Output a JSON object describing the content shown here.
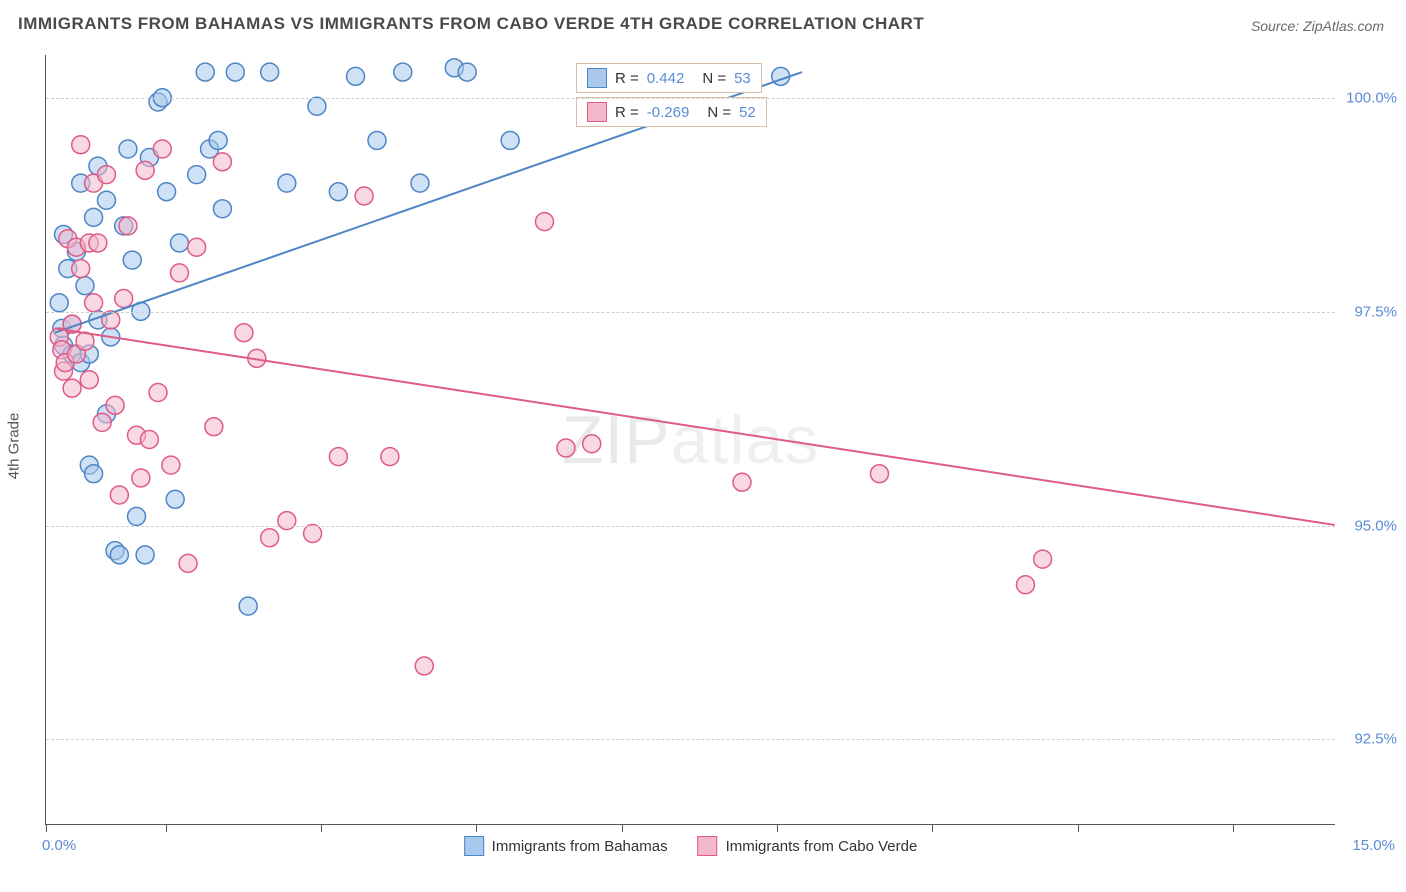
{
  "chart": {
    "type": "scatter",
    "title": "IMMIGRANTS FROM BAHAMAS VS IMMIGRANTS FROM CABO VERDE 4TH GRADE CORRELATION CHART",
    "source_label": "Source: ZipAtlas.com",
    "y_axis_label": "4th Grade",
    "watermark_main": "ZIP",
    "watermark_sub": "atlas",
    "x_range_min_label": "0.0%",
    "x_range_max_label": "15.0%",
    "xlim": [
      0,
      15
    ],
    "ylim": [
      91.5,
      100.5
    ],
    "y_ticks": [
      92.5,
      95.0,
      97.5,
      100.0
    ],
    "y_tick_labels": [
      "92.5%",
      "95.0%",
      "97.5%",
      "100.0%"
    ],
    "x_ticks": [
      0,
      1.4,
      3.2,
      5.0,
      6.7,
      8.5,
      10.3,
      12.0,
      13.8
    ],
    "background_color": "#ffffff",
    "grid_color": "#cfcfcf",
    "axis_color": "#555555",
    "marker_radius": 9,
    "marker_stroke_width": 1.5,
    "trend_line_width": 2,
    "series": [
      {
        "name": "Immigrants from Bahamas",
        "fill": "#a8c8ec",
        "stroke": "#4d85c6",
        "fill_opacity": 0.55,
        "R_label": "R =",
        "R_value": "0.442",
        "N_label": "N =",
        "N_value": "53",
        "trend_start": [
          0.1,
          97.25
        ],
        "trend_end": [
          8.8,
          100.3
        ],
        "points": [
          [
            0.15,
            97.6
          ],
          [
            0.18,
            97.3
          ],
          [
            0.2,
            97.1
          ],
          [
            0.2,
            98.4
          ],
          [
            0.25,
            98.0
          ],
          [
            0.3,
            97.0
          ],
          [
            0.3,
            97.35
          ],
          [
            0.35,
            98.2
          ],
          [
            0.4,
            96.9
          ],
          [
            0.4,
            99.0
          ],
          [
            0.45,
            97.8
          ],
          [
            0.5,
            97.0
          ],
          [
            0.5,
            95.7
          ],
          [
            0.55,
            95.6
          ],
          [
            0.55,
            98.6
          ],
          [
            0.6,
            99.2
          ],
          [
            0.6,
            97.4
          ],
          [
            0.7,
            98.8
          ],
          [
            0.7,
            96.3
          ],
          [
            0.75,
            97.2
          ],
          [
            0.8,
            94.7
          ],
          [
            0.85,
            94.65
          ],
          [
            0.9,
            98.5
          ],
          [
            0.95,
            99.4
          ],
          [
            1.0,
            98.1
          ],
          [
            1.05,
            95.1
          ],
          [
            1.1,
            97.5
          ],
          [
            1.15,
            94.65
          ],
          [
            1.2,
            99.3
          ],
          [
            1.3,
            99.95
          ],
          [
            1.35,
            100.0
          ],
          [
            1.4,
            98.9
          ],
          [
            1.5,
            95.3
          ],
          [
            1.55,
            98.3
          ],
          [
            1.75,
            99.1
          ],
          [
            1.85,
            100.3
          ],
          [
            1.9,
            99.4
          ],
          [
            2.0,
            99.5
          ],
          [
            2.05,
            98.7
          ],
          [
            2.2,
            100.3
          ],
          [
            2.35,
            94.05
          ],
          [
            2.6,
            100.3
          ],
          [
            2.8,
            99.0
          ],
          [
            3.15,
            99.9
          ],
          [
            3.4,
            98.9
          ],
          [
            3.6,
            100.25
          ],
          [
            3.85,
            99.5
          ],
          [
            4.15,
            100.3
          ],
          [
            4.35,
            99.0
          ],
          [
            4.75,
            100.35
          ],
          [
            4.9,
            100.3
          ],
          [
            5.4,
            99.5
          ],
          [
            8.55,
            100.25
          ]
        ]
      },
      {
        "name": "Immigrants from Cabo Verde",
        "fill": "#f3b8ca",
        "stroke": "#e05a87",
        "fill_opacity": 0.55,
        "R_label": "R =",
        "R_value": "-0.269",
        "N_label": "N =",
        "N_value": "52",
        "trend_start": [
          0.1,
          97.3
        ],
        "trend_end": [
          15.0,
          95.0
        ],
        "points": [
          [
            0.15,
            97.2
          ],
          [
            0.18,
            97.05
          ],
          [
            0.2,
            96.8
          ],
          [
            0.22,
            96.9
          ],
          [
            0.25,
            98.35
          ],
          [
            0.3,
            96.6
          ],
          [
            0.3,
            97.35
          ],
          [
            0.35,
            97.0
          ],
          [
            0.35,
            98.25
          ],
          [
            0.4,
            98.0
          ],
          [
            0.4,
            99.45
          ],
          [
            0.45,
            97.15
          ],
          [
            0.5,
            98.3
          ],
          [
            0.5,
            96.7
          ],
          [
            0.55,
            99.0
          ],
          [
            0.55,
            97.6
          ],
          [
            0.6,
            98.3
          ],
          [
            0.65,
            96.2
          ],
          [
            0.7,
            99.1
          ],
          [
            0.75,
            97.4
          ],
          [
            0.8,
            96.4
          ],
          [
            0.85,
            95.35
          ],
          [
            0.9,
            97.65
          ],
          [
            0.95,
            98.5
          ],
          [
            1.05,
            96.05
          ],
          [
            1.1,
            95.55
          ],
          [
            1.15,
            99.15
          ],
          [
            1.2,
            96.0
          ],
          [
            1.3,
            96.55
          ],
          [
            1.35,
            99.4
          ],
          [
            1.45,
            95.7
          ],
          [
            1.55,
            97.95
          ],
          [
            1.65,
            94.55
          ],
          [
            1.75,
            98.25
          ],
          [
            1.95,
            96.15
          ],
          [
            2.05,
            99.25
          ],
          [
            2.3,
            97.25
          ],
          [
            2.45,
            96.95
          ],
          [
            2.6,
            94.85
          ],
          [
            2.8,
            95.05
          ],
          [
            3.1,
            94.9
          ],
          [
            3.4,
            95.8
          ],
          [
            3.7,
            98.85
          ],
          [
            4.0,
            95.8
          ],
          [
            4.4,
            93.35
          ],
          [
            5.8,
            98.55
          ],
          [
            6.05,
            95.9
          ],
          [
            6.35,
            95.95
          ],
          [
            8.1,
            95.5
          ],
          [
            9.7,
            95.6
          ],
          [
            11.4,
            94.3
          ],
          [
            11.6,
            94.6
          ]
        ]
      }
    ]
  }
}
